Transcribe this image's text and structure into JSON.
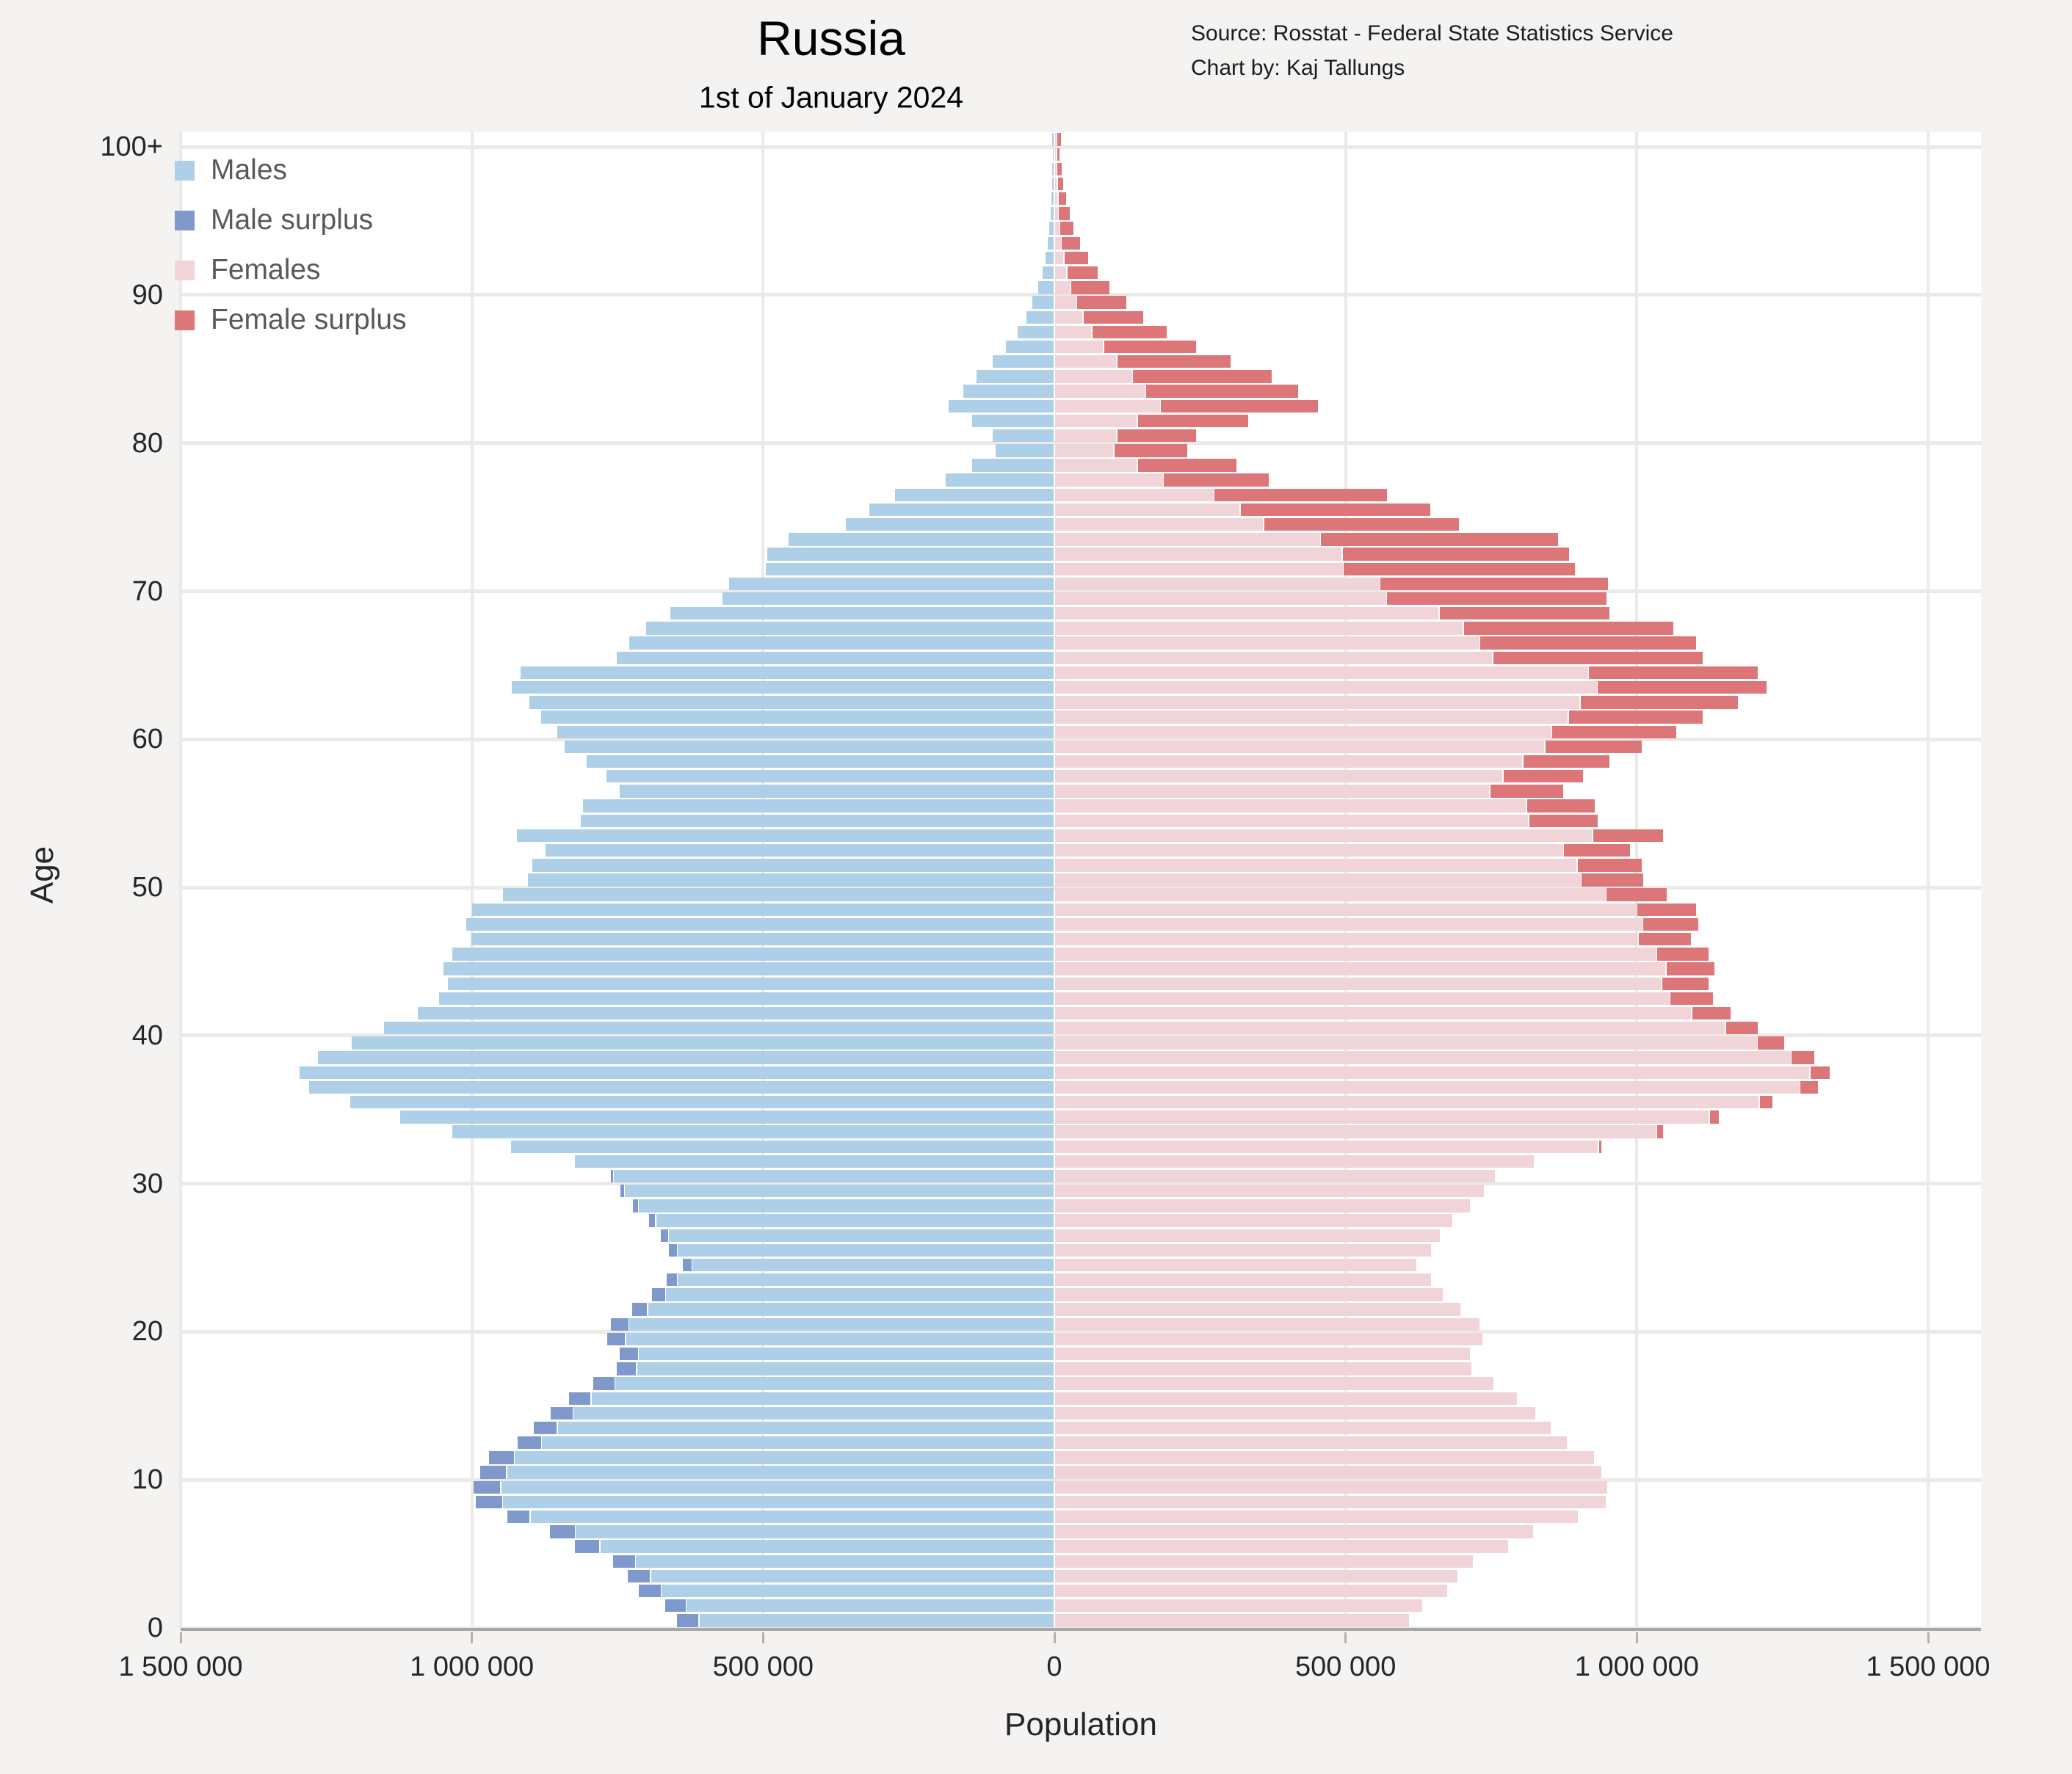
{
  "header": {
    "title": "Russia",
    "subtitle": "1st of January 2024",
    "source_line1": "Source: Rosstat - Federal State Statistics Service",
    "source_line2": "Chart by: Kaj Tallungs"
  },
  "axes": {
    "x_title": "Population",
    "y_title": "Age"
  },
  "colors": {
    "page_background": "#f4f3f1",
    "plot_background": "#ffffff",
    "gridline": "#eceae7",
    "axis_line": "#a9a7a4",
    "males": "#aecfe8",
    "male_surplus": "#8099cd",
    "females": "#f0d4d7",
    "female_surplus": "#dc7678"
  },
  "chart_data": {
    "type": "bar",
    "variant": "population-pyramid",
    "title": "Russia",
    "subtitle": "1st of January 2024",
    "xlabel": "Population",
    "ylabel": "Age",
    "xlim": [
      -1500000,
      1500000
    ],
    "grid": true,
    "legend_position": "top-left-inside",
    "legend": [
      {
        "key": "males",
        "label": "Males",
        "color": "#aecfe8"
      },
      {
        "key": "male_surplus",
        "label": "Male surplus",
        "color": "#8099cd"
      },
      {
        "key": "females",
        "label": "Females",
        "color": "#f0d4d7"
      },
      {
        "key": "female_surplus",
        "label": "Female surplus",
        "color": "#dc7678"
      }
    ],
    "x_ticks": {
      "values": [
        -1500000,
        -1000000,
        -500000,
        0,
        500000,
        1000000,
        1500000
      ],
      "labels": [
        "1 500 000",
        "1 000 000",
        "500 000",
        "0",
        "500 000",
        "1 000 000",
        "1 500 000"
      ]
    },
    "y_ticks": {
      "values": [
        0,
        10,
        20,
        30,
        40,
        50,
        60,
        70,
        80,
        90,
        100
      ],
      "labels": [
        "0",
        "10",
        "20",
        "30",
        "40",
        "50",
        "60",
        "70",
        "80",
        "90",
        "100+"
      ]
    },
    "ages": [
      0,
      1,
      2,
      3,
      4,
      5,
      6,
      7,
      8,
      9,
      10,
      11,
      12,
      13,
      14,
      15,
      16,
      17,
      18,
      19,
      20,
      21,
      22,
      23,
      24,
      25,
      26,
      27,
      28,
      29,
      30,
      31,
      32,
      33,
      34,
      35,
      36,
      37,
      38,
      39,
      40,
      41,
      42,
      43,
      44,
      45,
      46,
      47,
      48,
      49,
      50,
      51,
      52,
      53,
      54,
      55,
      56,
      57,
      58,
      59,
      60,
      61,
      62,
      63,
      64,
      65,
      66,
      67,
      68,
      69,
      70,
      71,
      72,
      73,
      74,
      75,
      76,
      77,
      78,
      79,
      80,
      81,
      82,
      83,
      84,
      85,
      86,
      87,
      88,
      89,
      90,
      91,
      92,
      93,
      94,
      95,
      96,
      97,
      98,
      99,
      100
    ],
    "series": [
      {
        "name": "Males",
        "values": [
          645000,
          665000,
          710000,
          729000,
          755000,
          820000,
          863000,
          936000,
          990000,
          994000,
          982000,
          968000,
          918000,
          890000,
          862000,
          830000,
          788000,
          748000,
          743000,
          765000,
          758000,
          722000,
          688000,
          663000,
          635000,
          658000,
          673000,
          693000,
          720000,
          742000,
          758000,
          822000,
          932000,
          1032000,
          1122000,
          1208000,
          1278000,
          1295000,
          1263000,
          1205000,
          1150000,
          1092000,
          1055000,
          1040000,
          1048000,
          1032000,
          1000000,
          1008000,
          998000,
          945000,
          902000,
          895000,
          872000,
          922000,
          812000,
          808000,
          745000,
          768000,
          802000,
          840000,
          852000,
          880000,
          900000,
          930000,
          915000,
          750000,
          728000,
          700000,
          658000,
          568000,
          557000,
          494000,
          492000,
          455000,
          357000,
          317000,
          272000,
          185000,
          140000,
          100000,
          105000,
          140000,
          180000,
          155000,
          132000,
          105000,
          82000,
          62000,
          47000,
          36000,
          26000,
          19000,
          14000,
          10000,
          7000,
          5000,
          4000,
          3000,
          2000,
          1500,
          2000
        ]
      },
      {
        "name": "Females",
        "values": [
          608000,
          630000,
          673000,
          691000,
          717000,
          778000,
          820000,
          898000,
          945000,
          948000,
          938000,
          925000,
          878000,
          851000,
          824000,
          793000,
          752000,
          715000,
          712000,
          734000,
          728000,
          696000,
          665000,
          645000,
          620000,
          645000,
          660000,
          682000,
          712000,
          736000,
          755000,
          822000,
          936000,
          1042000,
          1138000,
          1230000,
          1308000,
          1328000,
          1302000,
          1250000,
          1205000,
          1158000,
          1128000,
          1120000,
          1130000,
          1120000,
          1090000,
          1102000,
          1098000,
          1048000,
          1008000,
          1005000,
          985000,
          1042000,
          930000,
          925000,
          870000,
          905000,
          950000,
          1005000,
          1065000,
          1110000,
          1170000,
          1220000,
          1205000,
          1110000,
          1098000,
          1060000,
          950000,
          945000,
          947000,
          890000,
          880000,
          862000,
          692000,
          642000,
          568000,
          365000,
          310000,
          225000,
          240000,
          330000,
          450000,
          415000,
          370000,
          300000,
          240000,
          190000,
          150000,
          120000,
          92000,
          71000,
          55000,
          41000,
          30000,
          23000,
          17000,
          12000,
          9000,
          6000,
          8000
        ]
      }
    ]
  }
}
